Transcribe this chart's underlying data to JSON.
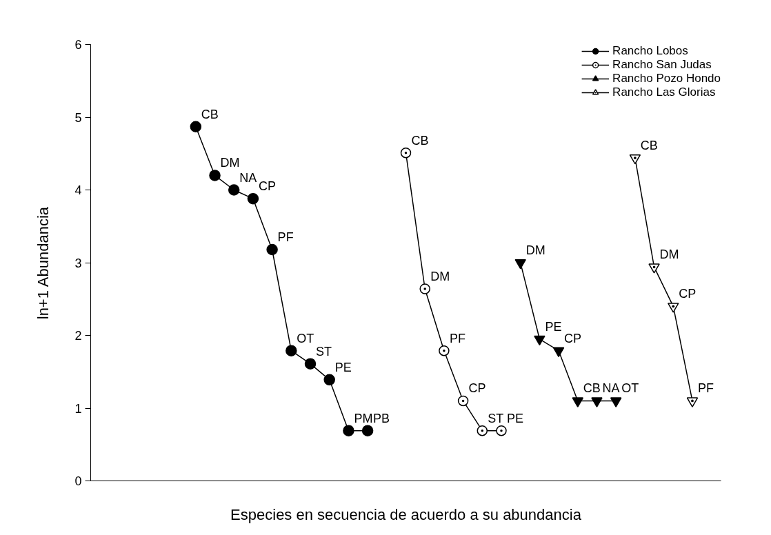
{
  "chart_data": {
    "type": "line",
    "xlabel": "Especies en secuencia de acuerdo a su abundancia",
    "ylabel": "ln+1 Abundancia",
    "categories": [
      null,
      null,
      null,
      null,
      null,
      null,
      null,
      null,
      null,
      null,
      null,
      null,
      null,
      null,
      null,
      null,
      null,
      null,
      null,
      null,
      null,
      null,
      null,
      null,
      null,
      null,
      null,
      null,
      null,
      null,
      null,
      null,
      null
    ],
    "ylim": [
      0,
      6
    ],
    "yticks": [
      0,
      1,
      2,
      3,
      4,
      5,
      6
    ],
    "grid": false,
    "legend": "top right",
    "tick_labels": "y",
    "line_style": "solid",
    "series": [
      {
        "name": "Rancho Lobos",
        "color": "#000000",
        "marker": "circle",
        "values": [
          null,
          null,
          null,
          null,
          null,
          4.87,
          4.2,
          4.0,
          3.88,
          3.18,
          1.79,
          1.61,
          1.39,
          0.69,
          0.69,
          null,
          null,
          null,
          null,
          null,
          null,
          null,
          null,
          null,
          null,
          null,
          null,
          null,
          null,
          null,
          null,
          null,
          null
        ],
        "value_labels": [
          null,
          null,
          null,
          null,
          null,
          "CB",
          "DM",
          "NA",
          "CP",
          "PF",
          "OT",
          "ST",
          "PE",
          "PM",
          "PB",
          null,
          null,
          null,
          null,
          null,
          null,
          null,
          null,
          null,
          null,
          null,
          null,
          null,
          null,
          null,
          null,
          null,
          null
        ]
      },
      {
        "name": "Rancho San Judas",
        "color": "#000000",
        "marker": "circle",
        "values": [
          null,
          null,
          null,
          null,
          null,
          null,
          null,
          null,
          null,
          null,
          null,
          null,
          null,
          null,
          null,
          null,
          4.51,
          2.64,
          1.79,
          1.1,
          0.69,
          0.69,
          null,
          null,
          null,
          null,
          null,
          null,
          null,
          null,
          null,
          null,
          null
        ],
        "value_labels": [
          null,
          null,
          null,
          null,
          null,
          null,
          null,
          null,
          null,
          null,
          null,
          null,
          null,
          null,
          null,
          null,
          "CB",
          "DM",
          "PF",
          "CP",
          "ST",
          "PE",
          null,
          null,
          null,
          null,
          null,
          null,
          null,
          null,
          null,
          null,
          null
        ]
      },
      {
        "name": "Rancho Pozo Hondo",
        "color": "#000000",
        "marker": "triangle",
        "values": [
          null,
          null,
          null,
          null,
          null,
          null,
          null,
          null,
          null,
          null,
          null,
          null,
          null,
          null,
          null,
          null,
          null,
          null,
          null,
          null,
          null,
          null,
          3.0,
          1.95,
          1.79,
          1.1,
          1.1,
          1.1,
          null,
          null,
          null,
          null,
          null
        ],
        "value_labels": [
          null,
          null,
          null,
          null,
          null,
          null,
          null,
          null,
          null,
          null,
          null,
          null,
          null,
          null,
          null,
          null,
          null,
          null,
          null,
          null,
          null,
          null,
          "DM",
          "PE",
          "CP",
          "CB",
          "NA",
          "OT",
          null,
          null,
          null,
          null,
          null
        ]
      },
      {
        "name": "Rancho Las Glorias",
        "color": "#000000",
        "marker": "triangle",
        "values": [
          null,
          null,
          null,
          null,
          null,
          null,
          null,
          null,
          null,
          null,
          null,
          null,
          null,
          null,
          null,
          null,
          null,
          null,
          null,
          null,
          null,
          null,
          null,
          null,
          null,
          null,
          null,
          null,
          4.44,
          2.94,
          2.4,
          1.1,
          null
        ],
        "value_labels": [
          null,
          null,
          null,
          null,
          null,
          null,
          null,
          null,
          null,
          null,
          null,
          null,
          null,
          null,
          null,
          null,
          null,
          null,
          null,
          null,
          null,
          null,
          null,
          null,
          null,
          null,
          null,
          null,
          "CB",
          "DM",
          "CP",
          "PF",
          null
        ]
      }
    ]
  }
}
